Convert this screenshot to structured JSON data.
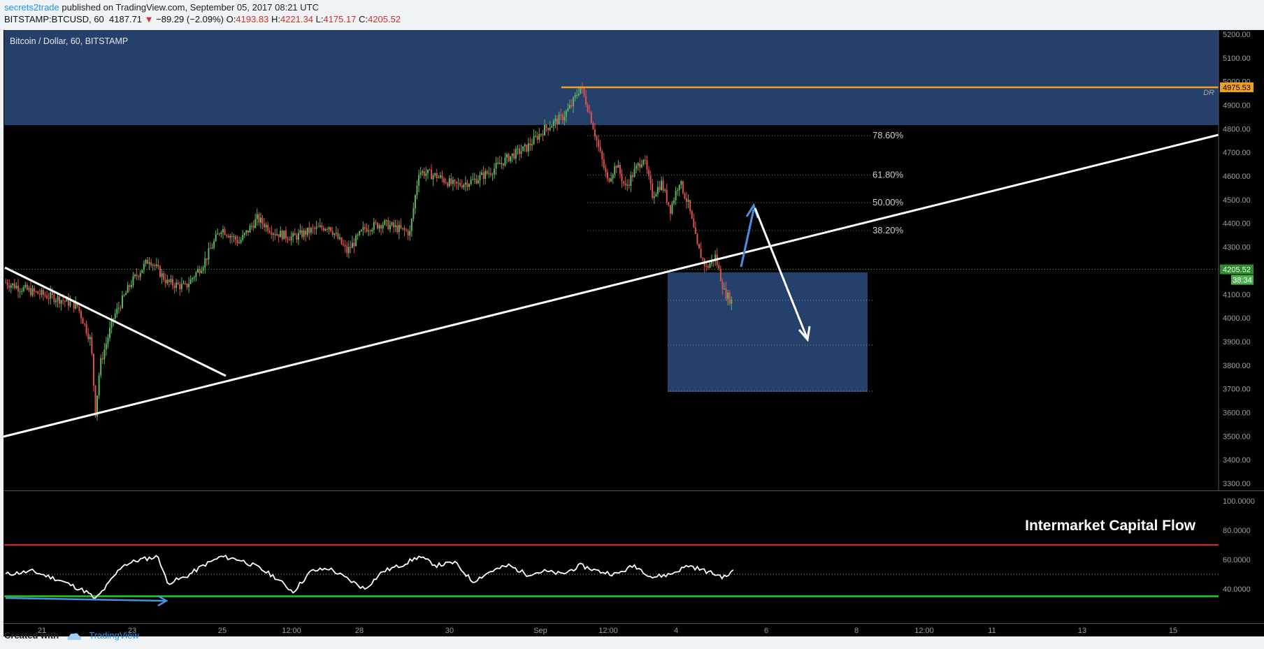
{
  "header": {
    "author": "secrets2trade",
    "published_text": "published on TradingView.com, September 05, 2017 08:21 UTC",
    "symbol": "BITSTAMP:BTCUSD, 60",
    "last": "4187.71",
    "change_arrow": "▼",
    "change": "−89.29 (−2.09%)",
    "o_label": "O:",
    "o": "4193.83",
    "h_label": "H:",
    "h": "4221.34",
    "l_label": "L:",
    "l": "4175.17",
    "c_label": "C:",
    "c": "4205.52"
  },
  "footer": {
    "created_with": "Created with",
    "brand": "TradingView"
  },
  "chart_data": [
    {
      "type": "candlestick",
      "title": "Bitcoin / Dollar, 60, BITSTAMP",
      "ylim": [
        3250,
        5250
      ],
      "yticks": [
        "5200.00",
        "5100.00",
        "5000.00",
        "4900.00",
        "4800.00",
        "4700.00",
        "4600.00",
        "4500.00",
        "4400.00",
        "4300.00",
        "4200.00",
        "4100.00",
        "4000.00",
        "3900.00",
        "3800.00",
        "3700.00",
        "3600.00",
        "3500.00",
        "3400.00",
        "3300.00"
      ],
      "xticks": [
        "21",
        "23",
        "25",
        "12:00",
        "28",
        "30",
        "Sep",
        "12:00",
        "4",
        "6",
        "8",
        "12:00",
        "11",
        "13",
        "15"
      ],
      "price_path": [
        [
          0,
          4150
        ],
        [
          3,
          4110
        ],
        [
          6,
          4080
        ],
        [
          8,
          4050
        ],
        [
          9.5,
          3900
        ],
        [
          10,
          3600
        ],
        [
          10.5,
          3800
        ],
        [
          12,
          4000
        ],
        [
          14,
          4150
        ],
        [
          16,
          4250
        ],
        [
          18,
          4150
        ],
        [
          20,
          4130
        ],
        [
          22,
          4230
        ],
        [
          24,
          4380
        ],
        [
          26,
          4320
        ],
        [
          28,
          4420
        ],
        [
          30,
          4360
        ],
        [
          32,
          4340
        ],
        [
          34,
          4370
        ],
        [
          36,
          4390
        ],
        [
          38,
          4280
        ],
        [
          40,
          4380
        ],
        [
          42,
          4400
        ],
        [
          45,
          4360
        ],
        [
          46,
          4620
        ],
        [
          48,
          4600
        ],
        [
          50,
          4560
        ],
        [
          52,
          4580
        ],
        [
          54,
          4620
        ],
        [
          56,
          4680
        ],
        [
          58,
          4720
        ],
        [
          60,
          4800
        ],
        [
          62,
          4850
        ],
        [
          63,
          4900
        ],
        [
          64,
          4980
        ],
        [
          65,
          4870
        ],
        [
          66,
          4720
        ],
        [
          67,
          4580
        ],
        [
          68,
          4650
        ],
        [
          69,
          4550
        ],
        [
          70,
          4620
        ],
        [
          71,
          4680
        ],
        [
          72,
          4520
        ],
        [
          73,
          4570
        ],
        [
          74,
          4460
        ],
        [
          75,
          4580
        ],
        [
          76,
          4480
        ],
        [
          77,
          4300
        ],
        [
          78,
          4210
        ],
        [
          79,
          4260
        ],
        [
          80,
          4110
        ],
        [
          81,
          4060
        ]
      ],
      "last_price": "4205.52",
      "countdown": "38:34",
      "resistance_price": "4975.53",
      "resistance_label": "DR",
      "fib_levels": [
        "78.60%",
        "61.80%",
        "50.00%",
        "38.20%"
      ],
      "fib_prices": [
        4771,
        4604,
        4488,
        4370
      ]
    },
    {
      "type": "line",
      "title": "Intermarket Capital Flow",
      "ylim": [
        25,
        100
      ],
      "yticks": [
        "100.0000",
        "80.0000",
        "60.0000",
        "40.0000"
      ],
      "upper_line": 70,
      "lower_line": 35,
      "mid_line": 50,
      "path": [
        [
          0,
          50
        ],
        [
          3,
          52
        ],
        [
          6,
          46
        ],
        [
          9,
          38
        ],
        [
          10,
          33
        ],
        [
          11,
          40
        ],
        [
          13,
          56
        ],
        [
          15,
          60
        ],
        [
          17,
          62
        ],
        [
          18,
          44
        ],
        [
          20,
          48
        ],
        [
          22,
          56
        ],
        [
          24,
          62
        ],
        [
          26,
          60
        ],
        [
          28,
          55
        ],
        [
          30,
          48
        ],
        [
          32,
          38
        ],
        [
          34,
          52
        ],
        [
          36,
          54
        ],
        [
          38,
          47
        ],
        [
          40,
          40
        ],
        [
          42,
          52
        ],
        [
          44,
          56
        ],
        [
          46,
          62
        ],
        [
          48,
          56
        ],
        [
          50,
          58
        ],
        [
          52,
          45
        ],
        [
          54,
          52
        ],
        [
          56,
          56
        ],
        [
          58,
          50
        ],
        [
          60,
          52
        ],
        [
          62,
          50
        ],
        [
          64,
          56
        ],
        [
          66,
          52
        ],
        [
          68,
          50
        ],
        [
          70,
          56
        ],
        [
          72,
          48
        ],
        [
          74,
          50
        ],
        [
          76,
          56
        ],
        [
          78,
          52
        ],
        [
          80,
          48
        ],
        [
          81,
          52
        ]
      ]
    }
  ],
  "colors": {
    "up": "#5cb85c",
    "down": "#e05050",
    "zone": "#25406b",
    "resistance": "#f0a020",
    "price_tag": "#2e8b2e",
    "countdown_tag": "#4cae4c",
    "overbought": "#e02020",
    "oversold": "#22cc22",
    "arrow_blue": "#4a8fe0"
  }
}
